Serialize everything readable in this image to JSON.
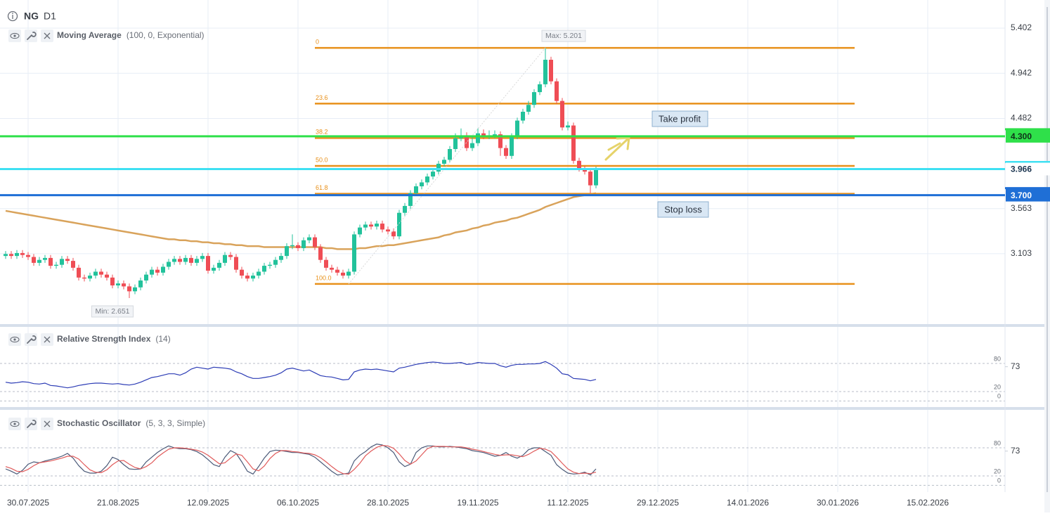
{
  "header": {
    "symbol": "NG",
    "timeframe": "D1"
  },
  "time_axis": {
    "labels": [
      "30.07.2025",
      "21.08.2025",
      "12.09.2025",
      "06.10.2025",
      "28.10.2025",
      "19.11.2025",
      "11.12.2025",
      "29.12.2025",
      "14.01.2026",
      "30.01.2026",
      "15.02.2026"
    ]
  },
  "chart_data": [
    {
      "type": "candlestick",
      "indicator": "Moving Average",
      "params": "(100, 0, Exponential)",
      "up_color": "#22c29b",
      "down_color": "#ef4d55",
      "open": [
        3.08,
        3.1,
        3.08,
        3.11,
        3.09,
        3.07,
        3.01,
        3.04,
        3.06,
        2.98,
        2.99,
        3.05,
        3.03,
        2.96,
        2.86,
        2.85,
        2.88,
        2.92,
        2.89,
        2.86,
        2.78,
        2.8,
        2.77,
        2.72,
        2.76,
        2.83,
        2.89,
        2.94,
        2.91,
        2.97,
        3.02,
        3.05,
        3.02,
        3.06,
        3.01,
        3.05,
        3.08,
        2.93,
        2.96,
        3.01,
        3.09,
        3.07,
        2.94,
        2.88,
        2.85,
        2.88,
        2.92,
        2.98,
        2.99,
        3.04,
        3.08,
        3.18,
        3.19,
        3.16,
        3.24,
        3.27,
        3.17,
        3.04,
        2.96,
        2.94,
        2.91,
        2.88,
        2.92,
        3.3,
        3.37,
        3.4,
        3.38,
        3.41,
        3.35,
        3.33,
        3.28,
        3.52,
        3.59,
        3.72,
        3.79,
        3.83,
        3.89,
        3.94,
        4.02,
        4.06,
        4.17,
        4.28,
        4.3,
        4.18,
        4.23,
        4.33,
        4.3,
        4.31,
        4.32,
        4.18,
        4.1,
        4.3,
        4.46,
        4.55,
        4.62,
        4.75,
        4.83,
        5.08,
        4.86,
        4.66,
        4.39,
        4.41,
        4.05,
        3.97,
        3.94,
        3.8
      ],
      "high": [
        3.13,
        3.13,
        3.14,
        3.14,
        3.12,
        3.1,
        3.07,
        3.09,
        3.09,
        3.02,
        3.08,
        3.08,
        3.06,
        2.99,
        2.89,
        2.91,
        2.95,
        2.95,
        2.92,
        2.89,
        2.83,
        2.83,
        2.8,
        2.79,
        2.86,
        2.92,
        2.97,
        2.97,
        3.0,
        3.05,
        3.08,
        3.08,
        3.09,
        3.09,
        3.08,
        3.11,
        3.11,
        2.99,
        3.04,
        3.12,
        3.12,
        3.1,
        2.97,
        2.91,
        2.91,
        2.95,
        3.01,
        3.02,
        3.07,
        3.11,
        3.21,
        3.3,
        3.22,
        3.27,
        3.3,
        3.3,
        3.2,
        3.07,
        2.99,
        2.97,
        2.94,
        2.95,
        3.33,
        3.4,
        3.43,
        3.43,
        3.44,
        3.44,
        3.38,
        3.36,
        3.55,
        3.62,
        3.75,
        3.82,
        3.86,
        3.92,
        3.97,
        4.05,
        4.09,
        4.2,
        4.33,
        4.38,
        4.34,
        4.3,
        4.38,
        4.37,
        4.36,
        4.36,
        4.35,
        4.21,
        4.33,
        4.49,
        4.58,
        4.66,
        4.78,
        4.86,
        5.201,
        5.11,
        4.89,
        4.69,
        4.45,
        4.44,
        4.08,
        4.0,
        3.97,
        3.99
      ],
      "low": [
        3.05,
        3.05,
        3.05,
        3.06,
        3.04,
        2.98,
        2.98,
        3.01,
        2.95,
        2.95,
        2.96,
        3.0,
        2.93,
        2.83,
        2.82,
        2.82,
        2.85,
        2.86,
        2.83,
        2.75,
        2.75,
        2.74,
        2.651,
        2.69,
        2.73,
        2.8,
        2.86,
        2.88,
        2.88,
        2.94,
        2.99,
        2.99,
        2.99,
        2.98,
        2.98,
        3.02,
        2.9,
        2.9,
        2.93,
        2.98,
        3.04,
        2.91,
        2.85,
        2.82,
        2.82,
        2.85,
        2.89,
        2.95,
        2.96,
        3.01,
        3.05,
        3.15,
        3.13,
        3.13,
        3.21,
        3.14,
        3.01,
        2.93,
        2.91,
        2.88,
        2.85,
        2.85,
        2.89,
        3.27,
        3.34,
        3.35,
        3.35,
        3.32,
        3.3,
        3.25,
        3.25,
        3.49,
        3.56,
        3.69,
        3.76,
        3.8,
        3.86,
        3.91,
        3.99,
        4.03,
        4.14,
        4.25,
        4.15,
        4.15,
        4.2,
        4.27,
        4.27,
        4.28,
        4.1,
        4.07,
        4.07,
        4.27,
        4.43,
        4.52,
        4.59,
        4.72,
        4.8,
        4.83,
        4.63,
        4.36,
        4.36,
        4.02,
        3.94,
        3.91,
        3.72,
        3.77
      ],
      "close": [
        3.1,
        3.08,
        3.11,
        3.09,
        3.07,
        3.01,
        3.04,
        3.06,
        2.98,
        2.99,
        3.05,
        3.03,
        2.96,
        2.86,
        2.85,
        2.88,
        2.92,
        2.89,
        2.86,
        2.78,
        2.8,
        2.77,
        2.72,
        2.76,
        2.83,
        2.89,
        2.94,
        2.91,
        2.97,
        3.02,
        3.05,
        3.02,
        3.06,
        3.01,
        3.05,
        3.08,
        2.93,
        2.96,
        3.01,
        3.09,
        3.07,
        2.94,
        2.88,
        2.85,
        2.88,
        2.92,
        2.98,
        2.99,
        3.04,
        3.08,
        3.18,
        3.19,
        3.16,
        3.24,
        3.27,
        3.17,
        3.04,
        2.96,
        2.94,
        2.91,
        2.88,
        2.92,
        3.3,
        3.37,
        3.4,
        3.38,
        3.41,
        3.35,
        3.33,
        3.28,
        3.52,
        3.59,
        3.72,
        3.79,
        3.83,
        3.89,
        3.94,
        4.02,
        4.06,
        4.17,
        4.28,
        4.3,
        4.18,
        4.23,
        4.33,
        4.3,
        4.31,
        4.32,
        4.18,
        4.1,
        4.3,
        4.46,
        4.55,
        4.62,
        4.75,
        4.83,
        5.08,
        4.86,
        4.66,
        4.39,
        4.41,
        4.05,
        3.97,
        3.94,
        3.8,
        3.966
      ],
      "series": [
        {
          "color": "#d9a35b",
          "values": [
            3.54,
            3.53,
            3.52,
            3.51,
            3.5,
            3.49,
            3.48,
            3.47,
            3.46,
            3.45,
            3.44,
            3.43,
            3.42,
            3.41,
            3.4,
            3.39,
            3.38,
            3.37,
            3.36,
            3.35,
            3.34,
            3.33,
            3.32,
            3.31,
            3.3,
            3.29,
            3.28,
            3.27,
            3.26,
            3.25,
            3.25,
            3.24,
            3.24,
            3.23,
            3.23,
            3.22,
            3.22,
            3.21,
            3.21,
            3.2,
            3.2,
            3.19,
            3.19,
            3.18,
            3.18,
            3.18,
            3.17,
            3.17,
            3.17,
            3.17,
            3.17,
            3.17,
            3.17,
            3.17,
            3.17,
            3.17,
            3.17,
            3.16,
            3.16,
            3.15,
            3.15,
            3.15,
            3.15,
            3.16,
            3.16,
            3.17,
            3.18,
            3.18,
            3.19,
            3.19,
            3.2,
            3.21,
            3.22,
            3.23,
            3.24,
            3.25,
            3.26,
            3.27,
            3.29,
            3.3,
            3.32,
            3.33,
            3.34,
            3.36,
            3.37,
            3.39,
            3.4,
            3.42,
            3.43,
            3.44,
            3.46,
            3.47,
            3.49,
            3.51,
            3.53,
            3.55,
            3.58,
            3.6,
            3.62,
            3.64,
            3.66,
            3.68,
            3.69,
            3.7,
            3.71,
            3.72
          ]
        }
      ],
      "ylim": [
        2.393,
        5.689
      ],
      "yticks": [
        5.402,
        4.942,
        4.482,
        3.563,
        3.103
      ],
      "grid": true,
      "fibonacci": {
        "color": "#e8901a",
        "labels": [
          "0",
          "23.6",
          "38.2",
          "50.0",
          "61.8",
          "100.0"
        ],
        "prices": [
          5.201,
          4.633,
          4.282,
          3.998,
          3.714,
          2.795
        ]
      },
      "levels": [
        {
          "value": 4.3,
          "label": "4.300",
          "color": "#2fe04a",
          "tag_color": "#2fe04a",
          "text_color": "#10301a"
        },
        {
          "value": 3.966,
          "label": "3.966",
          "color": "#3fe0f2",
          "tag_color": "#ffffff",
          "text_color": "#1b3550"
        },
        {
          "value": 3.7,
          "label": "3.700",
          "color": "#1f6fd6",
          "tag_color": "#1f6fd6",
          "text_color": "#ffffff"
        }
      ],
      "annotations": {
        "max": "Max: 5.201",
        "min": "Min: 2.651",
        "take_profit": "Take profit",
        "stop_loss": "Stop loss"
      }
    },
    {
      "type": "line",
      "indicator": "Relative Strength Index",
      "params": "(14)",
      "series": [
        {
          "color": "#2b3bb5",
          "values": [
            40,
            38,
            39,
            41,
            40,
            37,
            36,
            38,
            33,
            32,
            30,
            28,
            30,
            33,
            35,
            37,
            38,
            38,
            37,
            36,
            37,
            35,
            34,
            36,
            40,
            45,
            50,
            52,
            55,
            58,
            58,
            55,
            60,
            68,
            72,
            70,
            68,
            72,
            71,
            70,
            68,
            62,
            58,
            52,
            48,
            48,
            50,
            52,
            55,
            60,
            68,
            70,
            67,
            64,
            66,
            60,
            54,
            52,
            51,
            48,
            45,
            46,
            62,
            66,
            68,
            67,
            68,
            66,
            64,
            62,
            70,
            72,
            75,
            78,
            80,
            82,
            83,
            82,
            80,
            80,
            81,
            82,
            78,
            79,
            82,
            81,
            80,
            80,
            75,
            72,
            76,
            78,
            78,
            79,
            79,
            80,
            84,
            78,
            70,
            58,
            56,
            48,
            47,
            46,
            43,
            46
          ]
        }
      ],
      "ylim": [
        -10,
        158
      ],
      "yticks": [
        73
      ],
      "levels": [
        80,
        20,
        0
      ]
    },
    {
      "type": "line",
      "indicator": "Stochastic Oscillator",
      "params": "(5, 3, 3, Simple)",
      "series": [
        {
          "color": "#4b5a78",
          "values": [
            35,
            30,
            24,
            32,
            45,
            50,
            48,
            52,
            55,
            58,
            62,
            68,
            58,
            42,
            30,
            26,
            26,
            30,
            42,
            60,
            55,
            44,
            35,
            34,
            35,
            50,
            60,
            70,
            78,
            84,
            80,
            78,
            78,
            76,
            72,
            65,
            55,
            44,
            40,
            60,
            74,
            68,
            50,
            30,
            24,
            40,
            58,
            72,
            75,
            74,
            72,
            70,
            70,
            68,
            66,
            60,
            50,
            40,
            30,
            22,
            24,
            26,
            52,
            64,
            72,
            82,
            88,
            86,
            80,
            70,
            50,
            40,
            45,
            70,
            80,
            84,
            84,
            82,
            82,
            83,
            82,
            80,
            78,
            74,
            72,
            70,
            66,
            62,
            64,
            70,
            62,
            58,
            64,
            76,
            80,
            80,
            72,
            64,
            44,
            34,
            26,
            24,
            25,
            28,
            22,
            35
          ]
        },
        {
          "color": "#e05a5a",
          "values": [
            40,
            36,
            30,
            29,
            34,
            42,
            48,
            50,
            52,
            55,
            58,
            62,
            62,
            56,
            44,
            33,
            28,
            27,
            33,
            44,
            52,
            53,
            45,
            38,
            35,
            40,
            48,
            60,
            69,
            77,
            80,
            80,
            79,
            77,
            75,
            71,
            64,
            55,
            46,
            48,
            58,
            67,
            64,
            50,
            35,
            31,
            41,
            57,
            68,
            74,
            74,
            72,
            71,
            69,
            68,
            65,
            59,
            50,
            40,
            31,
            25,
            24,
            34,
            47,
            63,
            73,
            81,
            85,
            84,
            79,
            67,
            53,
            45,
            52,
            65,
            78,
            83,
            83,
            83,
            82,
            82,
            82,
            80,
            77,
            75,
            72,
            69,
            66,
            64,
            65,
            65,
            63,
            61,
            66,
            73,
            79,
            77,
            72,
            60,
            47,
            35,
            28,
            25,
            26,
            25,
            28
          ]
        }
      ],
      "ylim": [
        -10,
        158
      ],
      "yticks": [
        73
      ],
      "levels": [
        80,
        20,
        0
      ]
    }
  ]
}
